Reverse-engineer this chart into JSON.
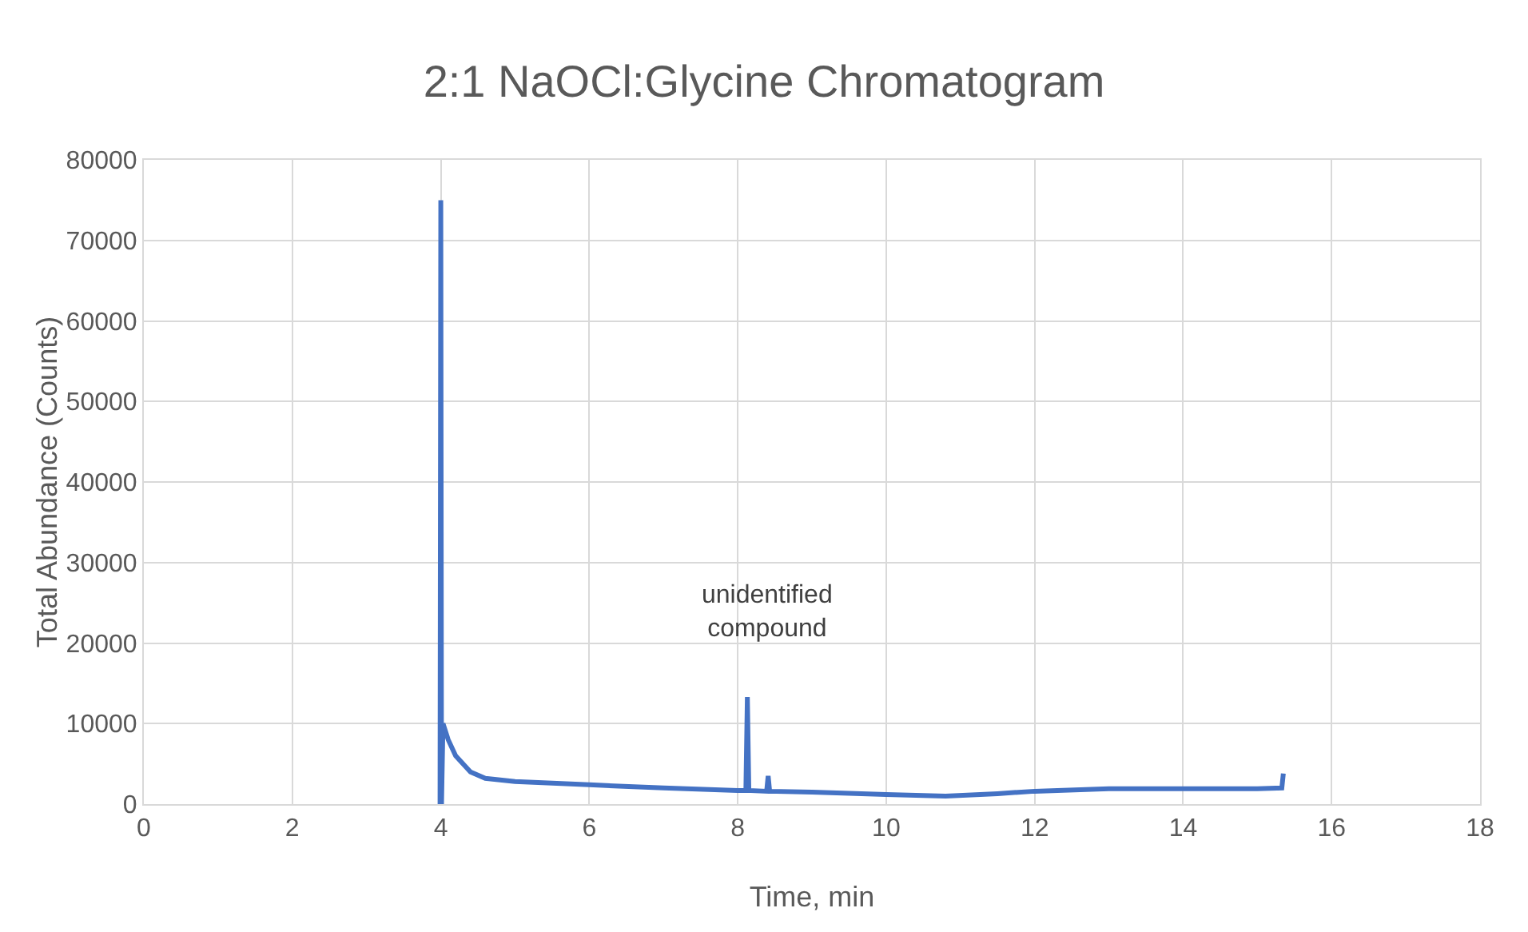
{
  "chart_data": {
    "type": "line",
    "title": "2:1 NaOCl:Glycine Chromatogram",
    "xlabel": "Time, min",
    "ylabel": "Total Abundance (Counts)",
    "x": [
      3.99,
      4.0,
      4.01,
      4.03,
      4.1,
      4.2,
      4.4,
      4.6,
      5,
      6,
      7,
      8,
      8.11,
      8.13,
      8.15,
      8.39,
      8.41,
      8.43,
      9,
      10,
      10.8,
      11.5,
      12,
      13,
      14,
      15,
      15.33,
      15.35
    ],
    "series": [
      {
        "color": "#4472c4",
        "values": [
          0,
          75000,
          0,
          10000,
          8000,
          6000,
          4000,
          3200,
          2800,
          2400,
          2000,
          1700,
          1700,
          13300,
          1700,
          1600,
          3500,
          1600,
          1500,
          1200,
          1000,
          1300,
          1600,
          1900,
          1900,
          1900,
          2000,
          3800
        ]
      }
    ],
    "xlim": [
      0,
      18
    ],
    "xticks": [
      0,
      2,
      4,
      6,
      8,
      10,
      12,
      14,
      16,
      18
    ],
    "ylim": [
      0,
      80000
    ],
    "yticks": [
      0,
      10000,
      20000,
      30000,
      40000,
      50000,
      60000,
      70000,
      80000
    ],
    "grid": true,
    "marker": "none",
    "line_style": "solid",
    "annotations": [
      {
        "text": "unidentified\ncompound",
        "x": 8.13,
        "y": 13300
      }
    ]
  }
}
